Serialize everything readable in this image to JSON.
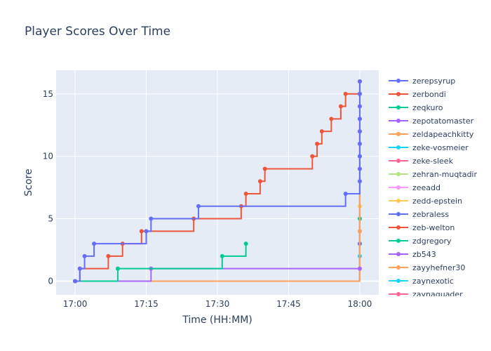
{
  "chart_data": {
    "type": "line",
    "line_shape": "step",
    "title": "Player Scores Over Time",
    "xlabel": "Time (HH:MM)",
    "ylabel": "Score",
    "x_ticks": [
      "17:00",
      "17:15",
      "17:30",
      "17:45",
      "18:00"
    ],
    "y_ticks": [
      "0",
      "5",
      "10",
      "15"
    ],
    "xlim": [
      "16:56",
      "18:04"
    ],
    "ylim": [
      -1.1,
      16.9
    ],
    "grid": true,
    "background": "#e5ecf6",
    "legend_position": "right",
    "series": [
      {
        "name": "zerepsyrup",
        "color": "#636efa",
        "points": [
          [
            "17:00",
            0
          ],
          [
            "17:01",
            1
          ],
          [
            "17:02",
            2
          ],
          [
            "17:04",
            3
          ],
          [
            "17:15",
            4
          ],
          [
            "17:16",
            5
          ],
          [
            "17:26",
            6
          ],
          [
            "17:57",
            7
          ],
          [
            "18:00",
            8
          ],
          [
            "18:00",
            9
          ],
          [
            "18:00",
            10
          ],
          [
            "18:00",
            11
          ],
          [
            "18:00",
            12
          ],
          [
            "18:00",
            13
          ],
          [
            "18:00",
            14
          ],
          [
            "18:00",
            15
          ],
          [
            "18:00",
            16
          ]
        ]
      },
      {
        "name": "zerbondi",
        "color": "#ef553b",
        "points": [
          [
            "17:00",
            0
          ],
          [
            "17:01",
            1
          ],
          [
            "17:07",
            2
          ],
          [
            "17:10",
            3
          ],
          [
            "17:14",
            4
          ],
          [
            "17:25",
            5
          ],
          [
            "17:35",
            6
          ],
          [
            "17:36",
            7
          ],
          [
            "17:39",
            8
          ],
          [
            "17:40",
            9
          ],
          [
            "17:50",
            10
          ],
          [
            "17:51",
            11
          ],
          [
            "17:52",
            12
          ],
          [
            "17:54",
            13
          ],
          [
            "17:56",
            14
          ],
          [
            "17:57",
            15
          ],
          [
            "18:00",
            16
          ]
        ]
      },
      {
        "name": "zeqkuro",
        "color": "#00cc96",
        "points": [
          [
            "17:00",
            0
          ],
          [
            "17:09",
            1
          ],
          [
            "17:31",
            2
          ],
          [
            "17:36",
            3
          ]
        ]
      },
      {
        "name": "zepotatomaster",
        "color": "#ab63fa",
        "points": [
          [
            "17:00",
            0
          ],
          [
            "17:16",
            1
          ],
          [
            "18:00",
            1
          ]
        ]
      },
      {
        "name": "zeldapeachkitty",
        "color": "#ffa15a",
        "points": [
          [
            "17:00",
            0
          ],
          [
            "18:00",
            16
          ]
        ]
      },
      {
        "name": "zeke-vosmeier",
        "color": "#19d3f3",
        "points": [
          [
            "17:00",
            0
          ],
          [
            "18:00",
            10
          ]
        ]
      },
      {
        "name": "zeke-sleek",
        "color": "#ff6692",
        "points": [
          [
            "17:00",
            0
          ],
          [
            "18:00",
            14
          ]
        ]
      },
      {
        "name": "zehran-muqtadir",
        "color": "#b6e880",
        "points": [
          [
            "17:00",
            0
          ],
          [
            "18:00",
            11
          ]
        ]
      },
      {
        "name": "zeeadd",
        "color": "#ff97ff",
        "points": [
          [
            "17:00",
            0
          ],
          [
            "18:00",
            9
          ]
        ]
      },
      {
        "name": "zedd-epstein",
        "color": "#fecb52",
        "points": [
          [
            "17:00",
            0
          ],
          [
            "18:00",
            6
          ]
        ]
      },
      {
        "name": "zebraless",
        "color": "#636efa",
        "points": [
          [
            "17:00",
            0
          ],
          [
            "18:00",
            3
          ]
        ]
      },
      {
        "name": "zeb-welton",
        "color": "#ef553b",
        "points": [
          [
            "17:00",
            0
          ],
          [
            "18:00",
            12
          ]
        ]
      },
      {
        "name": "zdgregory",
        "color": "#00cc96",
        "points": [
          [
            "17:00",
            0
          ],
          [
            "18:00",
            5
          ]
        ]
      },
      {
        "name": "zb543",
        "color": "#ab63fa",
        "points": [
          [
            "17:00",
            0
          ],
          [
            "18:00",
            13
          ]
        ]
      },
      {
        "name": "zayyhefner30",
        "color": "#ffa15a",
        "points": [
          [
            "17:00",
            0
          ],
          [
            "18:00",
            4
          ]
        ]
      },
      {
        "name": "zaynexotic",
        "color": "#19d3f3",
        "points": [
          [
            "17:00",
            0
          ],
          [
            "18:00",
            2
          ]
        ]
      },
      {
        "name": "zaynaquader",
        "color": "#ff6692",
        "points": [
          [
            "17:00",
            0
          ],
          [
            "18:00",
            15
          ]
        ]
      }
    ]
  }
}
